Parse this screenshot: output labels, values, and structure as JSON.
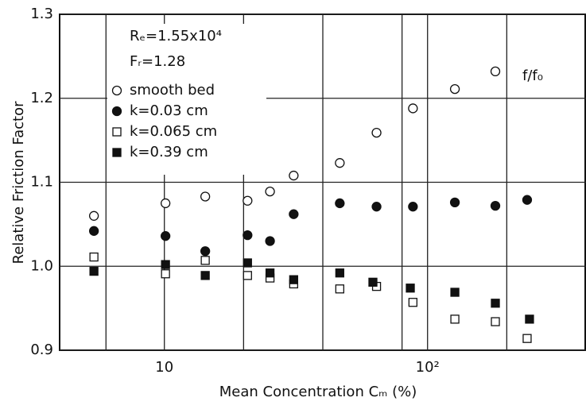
{
  "chart_data": {
    "type": "scatter",
    "y_label": "Relative Friction Factor",
    "y_label_right": "f/f₀",
    "x_label": "Mean   Concentration   Cₘ (%)",
    "annotations": [
      "Rₑ=1.55x10⁴",
      "Fᵣ=1.28"
    ],
    "log_x": true,
    "xlim": [
      4,
      400
    ],
    "xticks": [
      10,
      {
        "value": 100,
        "label": "10²"
      }
    ],
    "xgrid": [
      6,
      20,
      40,
      80,
      200
    ],
    "ylim": [
      0.9,
      1.3
    ],
    "yticks": [
      0.9,
      {
        "value": 1.0,
        "label": "1.0"
      },
      1.1,
      1.2,
      1.3
    ],
    "grid": true,
    "legend": "upper left",
    "series": [
      {
        "name": "smooth bed",
        "marker": "open-circle",
        "color": "#111",
        "x": [
          5.4,
          10.1,
          14.3,
          20.7,
          25.2,
          31,
          46.4,
          64,
          88,
          127,
          181
        ],
        "values": [
          1.06,
          1.075,
          1.083,
          1.078,
          1.089,
          1.108,
          1.123,
          1.159,
          1.188,
          1.211,
          1.232
        ]
      },
      {
        "name": "k=0.03   cm",
        "marker": "filled-circle",
        "color": "#111",
        "x": [
          5.4,
          10.1,
          14.3,
          20.7,
          25.2,
          31,
          46.4,
          64,
          88,
          127,
          181,
          239
        ],
        "values": [
          1.042,
          1.036,
          1.018,
          1.037,
          1.03,
          1.062,
          1.075,
          1.071,
          1.071,
          1.076,
          1.072,
          1.079
        ]
      },
      {
        "name": "k=0.065 cm",
        "marker": "open-square",
        "color": "#111",
        "x": [
          5.4,
          10.1,
          14.3,
          20.7,
          25.2,
          31,
          46.4,
          64,
          88,
          127,
          181,
          239
        ],
        "values": [
          1.011,
          0.991,
          1.007,
          0.989,
          0.986,
          0.979,
          0.973,
          0.976,
          0.957,
          0.937,
          0.934,
          0.914
        ]
      },
      {
        "name": "k=0.39   cm",
        "marker": "filled-square",
        "color": "#111",
        "x": [
          5.4,
          10.1,
          14.3,
          20.7,
          25.2,
          31,
          46.4,
          62,
          86,
          127,
          181,
          244
        ],
        "values": [
          0.994,
          1.002,
          0.989,
          1.004,
          0.992,
          0.984,
          0.992,
          0.981,
          0.974,
          0.969,
          0.956,
          0.937
        ]
      }
    ]
  }
}
